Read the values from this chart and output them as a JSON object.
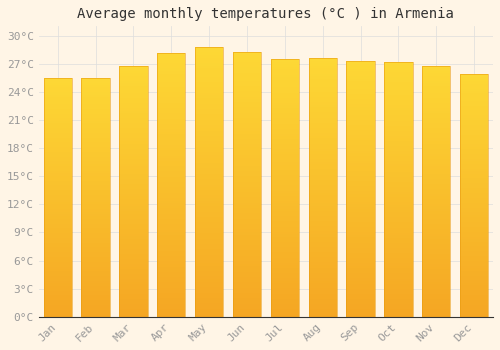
{
  "title": "Average monthly temperatures (°C ) in Armenia",
  "months": [
    "Jan",
    "Feb",
    "Mar",
    "Apr",
    "May",
    "Jun",
    "Jul",
    "Aug",
    "Sep",
    "Oct",
    "Nov",
    "Dec"
  ],
  "values": [
    25.5,
    25.5,
    26.8,
    28.2,
    28.8,
    28.3,
    27.5,
    27.6,
    27.3,
    27.2,
    26.8,
    25.9
  ],
  "bar_color_top": "#FDD835",
  "bar_color_bottom": "#F5A623",
  "bar_edge_color": "#E89A10",
  "background_color": "#FFF5E6",
  "plot_bg_color": "#FFF5E6",
  "grid_color": "#dddddd",
  "ylim": [
    0,
    31
  ],
  "yticks": [
    0,
    3,
    6,
    9,
    12,
    15,
    18,
    21,
    24,
    27,
    30
  ],
  "title_fontsize": 10,
  "tick_fontsize": 8,
  "tick_color": "#999999",
  "font_family": "monospace",
  "bar_width": 0.75
}
